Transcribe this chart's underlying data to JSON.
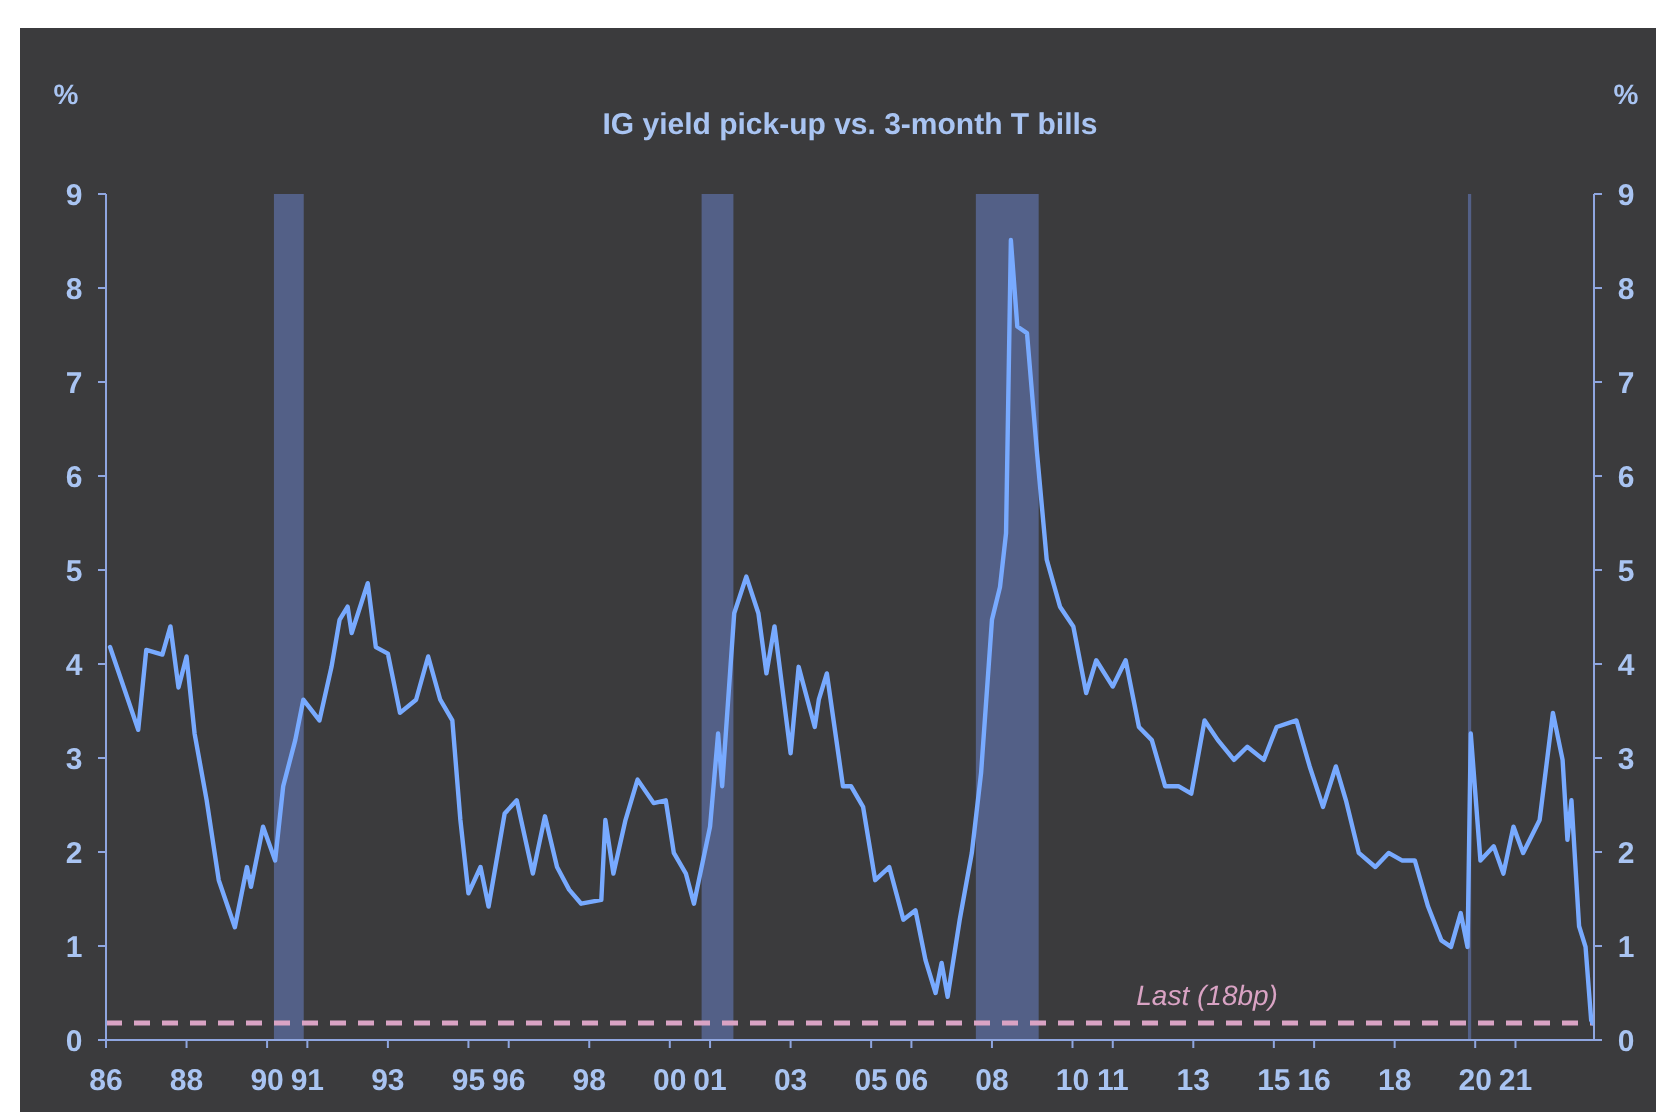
{
  "chart_data": {
    "type": "line",
    "title": "IG yield pick-up vs. 3-month  T bills",
    "ylabel": "%",
    "y2label": "%",
    "xlim": [
      1986,
      2022.95
    ],
    "xticks": [
      {
        "value": 1986,
        "label": "86"
      },
      {
        "value": 1988,
        "label": "88"
      },
      {
        "value": 1990,
        "label": "90"
      },
      {
        "value": 1991,
        "label": "91"
      },
      {
        "value": 1993,
        "label": "93"
      },
      {
        "value": 1995,
        "label": "95"
      },
      {
        "value": 1996,
        "label": "96"
      },
      {
        "value": 1998,
        "label": "98"
      },
      {
        "value": 2000,
        "label": "00"
      },
      {
        "value": 2001,
        "label": "01"
      },
      {
        "value": 2003,
        "label": "03"
      },
      {
        "value": 2005,
        "label": "05"
      },
      {
        "value": 2006,
        "label": "06"
      },
      {
        "value": 2008,
        "label": "08"
      },
      {
        "value": 2010,
        "label": "10"
      },
      {
        "value": 2011,
        "label": "11"
      },
      {
        "value": 2013,
        "label": "13"
      },
      {
        "value": 2015,
        "label": "15"
      },
      {
        "value": 2016,
        "label": "16"
      },
      {
        "value": 2018,
        "label": "18"
      },
      {
        "value": 2020,
        "label": "20"
      },
      {
        "value": 2021,
        "label": "21"
      }
    ],
    "ylim": [
      0,
      9
    ],
    "yticks": [
      0,
      1,
      2,
      3,
      4,
      5,
      6,
      7,
      8,
      9
    ],
    "y2lim": [
      0,
      9
    ],
    "y2ticks": [
      0,
      1,
      2,
      3,
      4,
      5,
      6,
      7,
      8,
      9
    ],
    "grid": false,
    "series": [
      {
        "color": "#78aaff",
        "x": [
          1986.1,
          1986.8,
          1987.0,
          1987.4,
          1987.6,
          1987.8,
          1988.0,
          1988.2,
          1988.5,
          1988.8,
          1989.2,
          1989.5,
          1989.6,
          1989.9,
          1990.2,
          1990.4,
          1990.7,
          1990.9,
          1991.3,
          1991.6,
          1991.8,
          1992.0,
          1992.1,
          1992.5,
          1992.7,
          1993.0,
          1993.3,
          1993.7,
          1994.0,
          1994.3,
          1994.6,
          1994.8,
          1995.0,
          1995.3,
          1995.5,
          1995.9,
          1996.2,
          1996.6,
          1996.9,
          1997.2,
          1997.5,
          1997.8,
          1998.3,
          1998.4,
          1998.6,
          1998.9,
          1999.2,
          1999.6,
          1999.9,
          2000.1,
          2000.4,
          2000.6,
          2001.0,
          2001.2,
          2001.3,
          2001.6,
          2001.9,
          2002.2,
          2002.4,
          2002.6,
          2003.0,
          2003.2,
          2003.6,
          2003.7,
          2003.9,
          2004.3,
          2004.5,
          2004.8,
          2005.1,
          2005.45,
          2005.8,
          2006.1,
          2006.35,
          2006.6,
          2006.75,
          2006.9,
          2007.2,
          2007.5,
          2007.73,
          2008.0,
          2008.2,
          2008.35,
          2008.47,
          2008.63,
          2008.87,
          2009.12,
          2009.36,
          2009.69,
          2010.02,
          2010.34,
          2010.59,
          2011.0,
          2011.32,
          2011.65,
          2011.97,
          2012.3,
          2012.63,
          2012.95,
          2013.28,
          2013.61,
          2014.01,
          2014.34,
          2014.75,
          2015.07,
          2015.56,
          2015.89,
          2016.22,
          2016.54,
          2016.79,
          2017.11,
          2017.52,
          2017.85,
          2018.18,
          2018.5,
          2018.83,
          2019.16,
          2019.4,
          2019.64,
          2019.81,
          2019.89,
          2020.13,
          2020.46,
          2020.7,
          2020.95,
          2021.19,
          2021.6,
          2021.93,
          2022.17,
          2022.29,
          2022.39,
          2022.58,
          2022.74,
          2022.88,
          2022.92
        ],
        "values": [
          4.18,
          3.3,
          4.15,
          4.1,
          4.4,
          3.75,
          4.08,
          3.26,
          2.55,
          1.7,
          1.2,
          1.84,
          1.63,
          2.27,
          1.91,
          2.7,
          3.19,
          3.62,
          3.4,
          3.97,
          4.47,
          4.61,
          4.33,
          4.86,
          4.18,
          4.11,
          3.48,
          3.62,
          4.08,
          3.62,
          3.4,
          2.34,
          1.56,
          1.84,
          1.42,
          2.41,
          2.55,
          1.77,
          2.38,
          1.84,
          1.6,
          1.45,
          1.49,
          2.34,
          1.77,
          2.34,
          2.77,
          2.52,
          2.55,
          1.99,
          1.77,
          1.45,
          2.27,
          3.26,
          2.7,
          4.54,
          4.93,
          4.54,
          3.9,
          4.4,
          3.05,
          3.97,
          3.33,
          3.62,
          3.9,
          2.7,
          2.7,
          2.48,
          1.7,
          1.84,
          1.28,
          1.38,
          0.85,
          0.5,
          0.82,
          0.46,
          1.28,
          1.99,
          2.84,
          4.47,
          4.82,
          5.39,
          8.51,
          7.59,
          7.52,
          6.24,
          5.11,
          4.61,
          4.4,
          3.69,
          4.04,
          3.76,
          4.04,
          3.33,
          3.19,
          2.7,
          2.7,
          2.62,
          3.4,
          3.19,
          2.98,
          3.12,
          2.98,
          3.33,
          3.4,
          2.91,
          2.48,
          2.91,
          2.55,
          1.99,
          1.84,
          1.99,
          1.91,
          1.91,
          1.42,
          1.06,
          0.99,
          1.35,
          0.99,
          3.26,
          1.91,
          2.06,
          1.77,
          2.27,
          1.99,
          2.34,
          3.48,
          2.98,
          2.13,
          2.55,
          1.21,
          0.99,
          0.21,
          0.18
        ]
      }
    ],
    "bands": [
      {
        "axis": "x",
        "from": 1990.17,
        "to": 1990.91,
        "color": "#56658f"
      },
      {
        "axis": "x",
        "from": 2000.79,
        "to": 2001.58,
        "color": "#56658f"
      },
      {
        "axis": "x",
        "from": 2007.6,
        "to": 2009.16,
        "color": "#56658f"
      },
      {
        "axis": "x",
        "from": 2019.82,
        "to": 2019.9,
        "color": "#56658f"
      }
    ],
    "ref_lines": [
      {
        "axis": "y",
        "value": 0.18,
        "label": "Last (18bp)",
        "color": "#d9a3c4",
        "line_style": "dashed"
      }
    ]
  }
}
